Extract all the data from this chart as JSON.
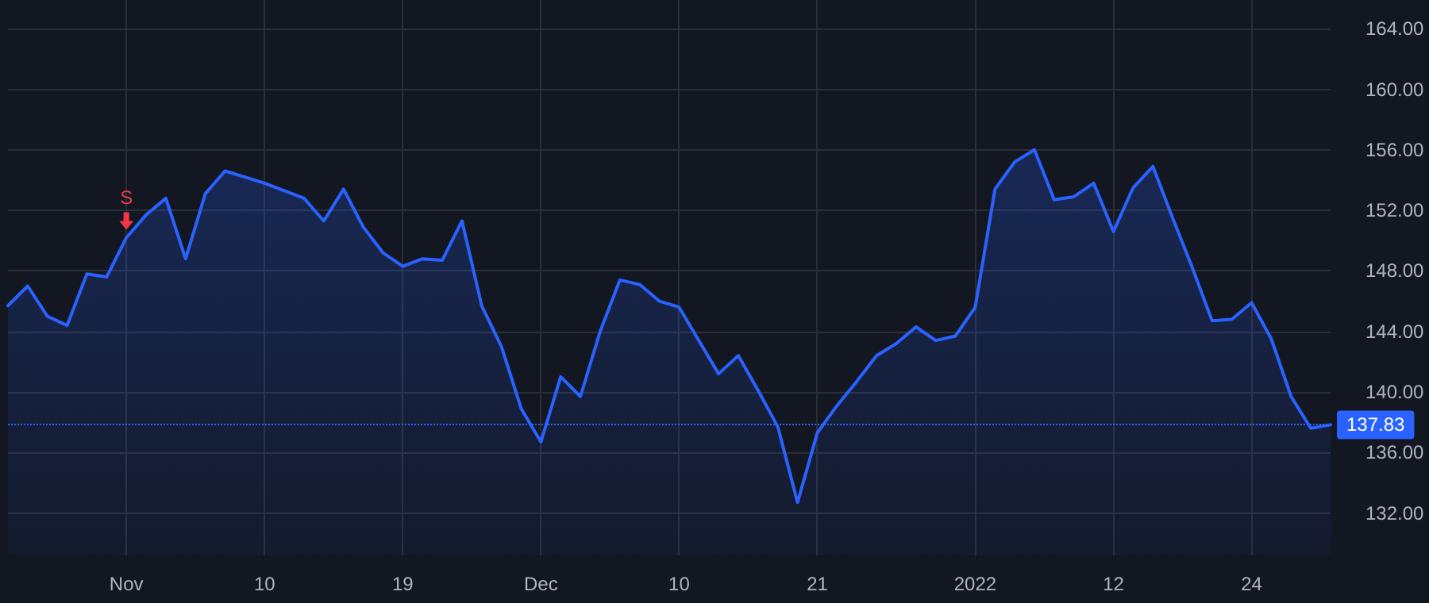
{
  "chart_data": {
    "type": "area",
    "categories": [
      null,
      null,
      null,
      null,
      null,
      null,
      "Nov",
      null,
      null,
      null,
      null,
      null,
      null,
      "10",
      null,
      null,
      null,
      null,
      null,
      null,
      "19",
      null,
      null,
      null,
      null,
      null,
      null,
      "Dec",
      null,
      null,
      null,
      null,
      null,
      null,
      "10",
      null,
      null,
      null,
      null,
      null,
      null,
      "21",
      null,
      null,
      null,
      null,
      null,
      null,
      null,
      "2022",
      null,
      null,
      null,
      null,
      null,
      null,
      "12",
      null,
      null,
      null,
      null,
      null,
      null,
      "24",
      null,
      null,
      null,
      null
    ],
    "series": [
      {
        "color": "#2962ff",
        "values": [
          145.7,
          147.0,
          145.0,
          144.4,
          147.8,
          147.6,
          150.2,
          151.7,
          152.8,
          148.8,
          153.1,
          154.6,
          154.2,
          153.8,
          153.3,
          152.8,
          151.3,
          153.4,
          150.9,
          149.2,
          148.3,
          148.8,
          148.7,
          151.3,
          145.7,
          143.0,
          138.9,
          136.7,
          141.0,
          139.7,
          144.0,
          147.4,
          147.1,
          146.0,
          145.6,
          143.4,
          141.2,
          142.4,
          140.1,
          137.7,
          132.7,
          137.3,
          139.1,
          140.7,
          142.4,
          143.2,
          144.3,
          143.4,
          143.7,
          145.6,
          153.4,
          155.2,
          156.0,
          152.7,
          152.9,
          153.8,
          150.6,
          153.5,
          154.9,
          151.5,
          148.2,
          144.7,
          144.8,
          145.9,
          143.5,
          139.7,
          137.6,
          137.83
        ]
      }
    ],
    "ylim": [
      129.2,
      165.9
    ],
    "yticks": [
      {
        "value": 132,
        "label": "132.00"
      },
      {
        "value": 136,
        "label": "136.00"
      },
      {
        "value": 140,
        "label": "140.00"
      },
      {
        "value": 144,
        "label": "144.00"
      },
      {
        "value": 148,
        "label": "148.00"
      },
      {
        "value": 152,
        "label": "152.00"
      },
      {
        "value": 156,
        "label": "156.00"
      },
      {
        "value": 160,
        "label": "160.00"
      },
      {
        "value": 164,
        "label": "164.00"
      }
    ],
    "ref_lines": [
      {
        "axis": "y",
        "value": 137.83,
        "label": "137.83",
        "color": "#2962ff",
        "line_style": "dotted"
      }
    ],
    "annotations": [
      {
        "text": "S",
        "x": "Nov",
        "y": 151.3
      }
    ],
    "grid": true,
    "marker": "none",
    "line_style": "solid"
  }
}
